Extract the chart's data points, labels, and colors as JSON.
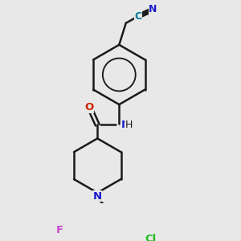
{
  "background_color": "#e8e8e8",
  "bond_color": "#1a1a1a",
  "bond_width": 1.8,
  "figsize": [
    3.0,
    3.0
  ],
  "dpi": 100,
  "atom_colors": {
    "N": "#1a1acc",
    "O": "#cc2200",
    "F": "#cc44cc",
    "Cl": "#22bb22",
    "C": "#007799",
    "default": "#1a1a1a"
  }
}
